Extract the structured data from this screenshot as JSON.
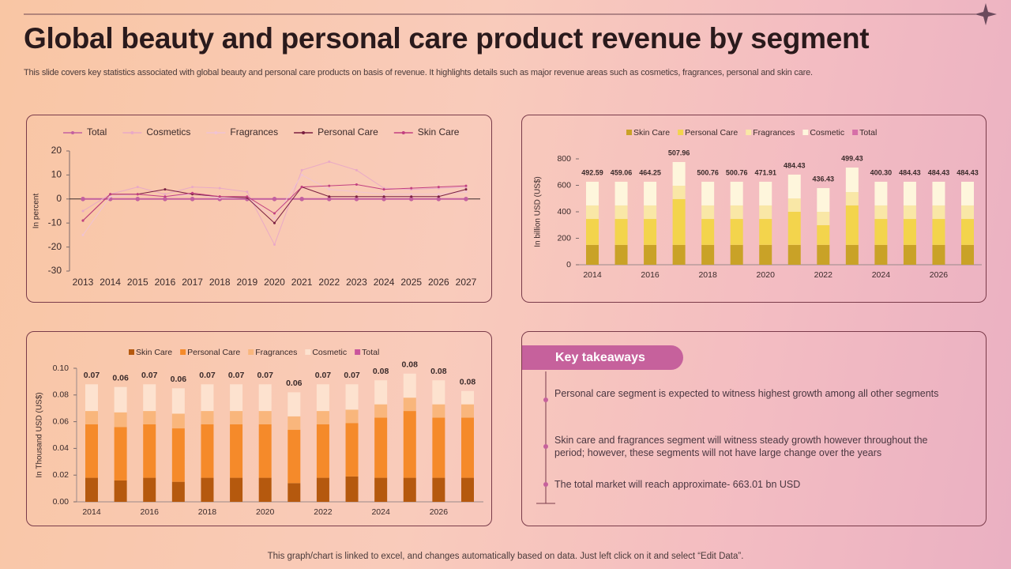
{
  "title": "Global beauty and personal care product revenue by segment",
  "subtitle": "This slide covers key statistics associated with global beauty and personal care products on basis of revenue. It highlights details such as major revenue areas such as cosmetics, fragrances, personal and skin care.",
  "footer": "This graph/chart is linked to excel,  and changes automatically based on data. Just left click on it and select “Edit Data”.",
  "takeaways": {
    "heading": "Key takeaways",
    "items": [
      "Personal care segment is expected to witness highest growth among all other segments",
      "Skin care and fragrances  segment will witness steady growth however  throughout the period; however,  these segments will not have large change over the years",
      "The total market will reach approximate- 663.01 bn USD"
    ]
  },
  "chart_data": [
    {
      "type": "line",
      "ylabel": "In percent",
      "categories": [
        2013,
        2014,
        2015,
        2016,
        2017,
        2018,
        2019,
        2020,
        2021,
        2022,
        2023,
        2024,
        2025,
        2026,
        2027
      ],
      "ylim": [
        -30,
        20
      ],
      "yticks": [
        -30,
        -20,
        -10,
        0,
        10,
        20
      ],
      "series": [
        {
          "name": "Total",
          "color": "#c2609f",
          "marker": true,
          "values": [
            0,
            0,
            0,
            0,
            0,
            0,
            0,
            0,
            0,
            0,
            0,
            0,
            0,
            0,
            0
          ]
        },
        {
          "name": "Cosmetics",
          "color": "#e9a9c6",
          "values": [
            -5,
            2,
            5,
            2,
            5,
            4.5,
            3,
            -19,
            12,
            15.5,
            12,
            4.5,
            4,
            4.5,
            5
          ]
        },
        {
          "name": "Fragrances",
          "color": "#f0c3d3",
          "values": [
            -15,
            1,
            2,
            1,
            2,
            0.5,
            0.5,
            -8,
            10,
            4,
            3,
            2,
            2,
            2,
            3
          ]
        },
        {
          "name": "Personal Care",
          "color": "#7a1f40",
          "values": [
            -9,
            2,
            2,
            4,
            2,
            1,
            0.5,
            -10,
            5,
            1,
            1,
            1,
            1,
            1,
            4
          ]
        },
        {
          "name": "Skin Care",
          "color": "#c24080",
          "values": [
            -9,
            2,
            2,
            1,
            2.5,
            1,
            1,
            -6,
            5,
            5.5,
            6,
            4,
            4.5,
            5,
            5.5
          ]
        }
      ]
    },
    {
      "type": "bar",
      "stacked": true,
      "ylabel": "In billion USD (US$)",
      "categories": [
        2014,
        null,
        2016,
        null,
        2018,
        null,
        2020,
        null,
        2022,
        null,
        2024,
        null,
        2026,
        null
      ],
      "ylim": [
        0,
        800
      ],
      "yticks": [
        0,
        200,
        400,
        600,
        800
      ],
      "series": [
        {
          "name": "Skin Care",
          "color": "#c9a227",
          "values": [
            150,
            150,
            150,
            150,
            150,
            150,
            150,
            150,
            150,
            150,
            150,
            150,
            150,
            150
          ]
        },
        {
          "name": "Personal Care",
          "color": "#f3d44c",
          "values": [
            196,
            196,
            196,
            346,
            196,
            196,
            196,
            250,
            149,
            298,
            196,
            196,
            196,
            196
          ]
        },
        {
          "name": "Fragrances",
          "color": "#f9e7a6",
          "values": [
            102,
            102,
            102,
            101,
            102,
            102,
            102,
            101,
            101,
            101,
            102,
            102,
            102,
            102
          ]
        },
        {
          "name": "Cosmetic",
          "color": "#fef6dc",
          "values": [
            179,
            179,
            179,
            179,
            179,
            179,
            179,
            180,
            179,
            185,
            179,
            179,
            179,
            179
          ]
        },
        {
          "name": "Total",
          "color": "#d66fa8",
          "kind": "label",
          "values": [
            492.59,
            459.06,
            464.25,
            507.96,
            500.76,
            500.76,
            471.91,
            484.43,
            436.43,
            499.43,
            400.3,
            484.43,
            484.43,
            484.43
          ],
          "value_labels": [
            "492.59",
            "459.06",
            "464.25",
            "507.96",
            "500.76",
            "500.76",
            "471.91",
            "484.43",
            "436.43",
            "499.43",
            "400.30",
            "484.43",
            "484.43",
            "484.43"
          ]
        }
      ]
    },
    {
      "type": "bar",
      "stacked": true,
      "ylabel": "In Thousand USD (US$)",
      "categories": [
        2014,
        null,
        2016,
        null,
        2018,
        null,
        2020,
        null,
        2022,
        null,
        2024,
        null,
        2026,
        null
      ],
      "ylim": [
        0,
        0.1
      ],
      "yticks": [
        {
          "value": 0,
          "label": "0.00"
        },
        0.02,
        0.04,
        0.06,
        0.08,
        {
          "value": 0.1,
          "label": "0.10"
        }
      ],
      "series": [
        {
          "name": "Skin Care",
          "color": "#b5590e",
          "values": [
            0.018,
            0.016,
            0.018,
            0.015,
            0.018,
            0.018,
            0.018,
            0.014,
            0.018,
            0.019,
            0.018,
            0.018,
            0.018,
            0.018
          ]
        },
        {
          "name": "Personal Care",
          "color": "#f58a2a",
          "values": [
            0.04,
            0.04,
            0.04,
            0.04,
            0.04,
            0.04,
            0.04,
            0.04,
            0.04,
            0.04,
            0.045,
            0.05,
            0.045,
            0.045
          ]
        },
        {
          "name": "Fragrances",
          "color": "#f9b67c",
          "values": [
            0.01,
            0.011,
            0.01,
            0.011,
            0.01,
            0.01,
            0.01,
            0.01,
            0.01,
            0.01,
            0.01,
            0.01,
            0.01,
            0.01
          ]
        },
        {
          "name": "Cosmetic",
          "color": "#fde2cf",
          "values": [
            0.02,
            0.019,
            0.02,
            0.019,
            0.02,
            0.02,
            0.02,
            0.018,
            0.02,
            0.019,
            0.018,
            0.018,
            0.018,
            0.01
          ]
        },
        {
          "name": "Total",
          "color": "#c9559c",
          "kind": "label",
          "values": [
            0.07,
            0.06,
            0.07,
            0.06,
            0.07,
            0.07,
            0.07,
            0.06,
            0.07,
            0.07,
            0.08,
            0.08,
            0.08,
            0.08
          ]
        }
      ]
    }
  ]
}
